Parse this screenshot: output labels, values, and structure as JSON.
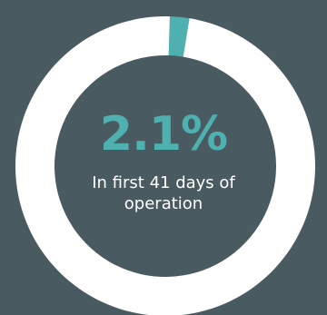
{
  "chart_data": {
    "type": "pie",
    "variant": "donut",
    "slices": [
      {
        "label": "",
        "value": 2.1,
        "color": "#4eb1b0"
      },
      {
        "label": "",
        "value": 97.9,
        "color": "#ffffff"
      }
    ],
    "value_label": "2.1%",
    "caption_line1": "In first 41 days of",
    "caption_line2": "operation"
  },
  "colors": {
    "background": "#495a60",
    "accent": "#4eb1b0",
    "ring": "#ffffff"
  }
}
